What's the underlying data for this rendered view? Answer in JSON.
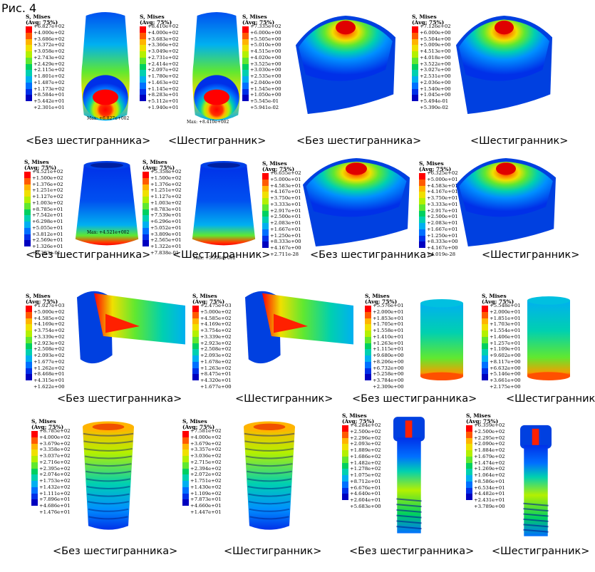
{
  "figure_title": "Рис. 4",
  "legend_header": [
    "S, Mises",
    "(Avg: 75%)"
  ],
  "legend_colors": [
    "#ff0000",
    "#ff5a00",
    "#ffb400",
    "#f0e000",
    "#b4f000",
    "#60e830",
    "#00d060",
    "#00d0b0",
    "#00b0f0",
    "#0070ff",
    "#0030e8",
    "#0000c0"
  ],
  "captions": {
    "without_hex": "<Без шестигранника>",
    "with_hex": "<Шестигранник>"
  },
  "panels": [
    {
      "id": "r1p1",
      "legend": [
        "+6.827e+02",
        "+4.000e+02",
        "+3.686e+02",
        "+3.372e+02",
        "+3.058e+02",
        "+2.743e+02",
        "+2.429e+02",
        "+2.115e+02",
        "+1.801e+02",
        "+1.487e+02",
        "+1.173e+02",
        "+8.584e+01",
        "+5.442e+01",
        "+2.301e+01"
      ],
      "max_label": "Max: +6.827e+002"
    },
    {
      "id": "r1p2",
      "legend": [
        "+8.410e+02",
        "+4.000e+02",
        "+3.683e+02",
        "+3.366e+02",
        "+3.049e+02",
        "+2.731e+02",
        "+2.414e+02",
        "+2.097e+02",
        "+1.780e+02",
        "+1.463e+02",
        "+1.145e+02",
        "+8.283e+01",
        "+5.112e+01",
        "+1.940e+01"
      ],
      "max_label": "Max: +8.410e+002"
    },
    {
      "id": "r1p3",
      "legend": [
        "+7.335e+02",
        "+6.000e+00",
        "+5.505e+00",
        "+5.010e+00",
        "+4.515e+00",
        "+4.020e+00",
        "+3.525e+00",
        "+3.030e+00",
        "+2.535e+00",
        "+2.040e+00",
        "+1.545e+00",
        "+1.050e+00",
        "+5.545e-01",
        "+5.941e-02"
      ]
    },
    {
      "id": "r1p4",
      "legend": [
        "+7.126e+02",
        "+6.000e+00",
        "+5.504e+00",
        "+5.009e+00",
        "+4.513e+00",
        "+4.018e+00",
        "+3.522e+00",
        "+3.027e+00",
        "+2.531e+00",
        "+2.036e+00",
        "+1.540e+00",
        "+1.045e+00",
        "+5.494e-01",
        "+5.390e-02"
      ]
    },
    {
      "id": "r2p1",
      "legend": [
        "+4.521e+02",
        "+1.500e+02",
        "+1.376e+02",
        "+1.251e+02",
        "+1.127e+02",
        "+1.003e+02",
        "+8.785e+01",
        "+7.542e+01",
        "+6.298e+01",
        "+5.055e+01",
        "+3.812e+01",
        "+2.569e+01",
        "+1.326e+01",
        "+8.303e-01"
      ],
      "max_label": "Max: +4.521e+002"
    },
    {
      "id": "r2p2",
      "legend": [
        "+5.358e+02",
        "+1.500e+02",
        "+1.376e+02",
        "+1.251e+02",
        "+1.127e+02",
        "+1.003e+02",
        "+8.783e+01",
        "+7.539e+01",
        "+6.296e+01",
        "+5.052e+01",
        "+3.809e+01",
        "+2.565e+01",
        "+1.322e+01",
        "+7.838e-01"
      ],
      "max_label": "Max: +5.358e+002"
    },
    {
      "id": "r2p3",
      "legend": [
        "+6.655e+02",
        "+5.000e+01",
        "+4.583e+01",
        "+4.167e+01",
        "+3.750e+01",
        "+3.333e+01",
        "+2.917e+01",
        "+2.500e+01",
        "+2.083e+01",
        "+1.667e+01",
        "+1.250e+01",
        "+8.333e+00",
        "+4.167e+00",
        "+2.711e-28"
      ]
    },
    {
      "id": "r2p4",
      "legend": [
        "+6.325e+02",
        "+5.000e+01",
        "+4.583e+01",
        "+4.167e+01",
        "+3.750e+01",
        "+3.333e+01",
        "+2.917e+01",
        "+2.500e+01",
        "+2.083e+01",
        "+1.667e+01",
        "+1.250e+01",
        "+8.333e+00",
        "+4.167e+00",
        "+4.019e-28"
      ]
    },
    {
      "id": "r3p1",
      "legend": [
        "+1.027e+03",
        "+5.000e+02",
        "+4.585e+02",
        "+4.169e+02",
        "+3.754e+02",
        "+3.339e+02",
        "+2.923e+02",
        "+2.508e+02",
        "+2.093e+02",
        "+1.677e+02",
        "+1.262e+02",
        "+8.468e+01",
        "+4.315e+01",
        "+1.622e+00"
      ]
    },
    {
      "id": "r3p2",
      "legend": [
        "+2.475e+03",
        "+5.000e+02",
        "+4.585e+02",
        "+4.169e+02",
        "+3.754e+02",
        "+3.339e+02",
        "+2.923e+02",
        "+2.508e+02",
        "+2.093e+02",
        "+1.678e+02",
        "+1.263e+02",
        "+8.475e+01",
        "+4.320e+01",
        "+1.677e+00"
      ]
    },
    {
      "id": "r3p3",
      "legend": [
        "+5.576e+01",
        "+2.000e+01",
        "+1.853e+01",
        "+1.705e+01",
        "+1.558e+01",
        "+1.410e+01",
        "+1.263e+01",
        "+1.115e+01",
        "+9.680e+00",
        "+8.206e+00",
        "+6.732e+00",
        "+5.258e+00",
        "+3.784e+00",
        "+2.309e+00"
      ]
    },
    {
      "id": "r3p4",
      "legend": [
        "+5.548e+01",
        "+2.000e+01",
        "+1.851e+01",
        "+1.703e+01",
        "+1.554e+01",
        "+1.406e+01",
        "+1.257e+01",
        "+1.109e+01",
        "+9.602e+00",
        "+8.117e+00",
        "+6.632e+00",
        "+5.146e+00",
        "+3.661e+00",
        "+2.175e+00"
      ]
    },
    {
      "id": "r4p1",
      "legend": [
        "+8.785e+02",
        "+4.000e+02",
        "+3.679e+02",
        "+3.358e+02",
        "+3.037e+02",
        "+2.716e+02",
        "+2.395e+02",
        "+2.074e+02",
        "+1.753e+02",
        "+1.432e+02",
        "+1.111e+02",
        "+7.896e+01",
        "+4.686e+01",
        "+1.476e+01"
      ]
    },
    {
      "id": "r4p2",
      "legend": [
        "+7.581e+02",
        "+4.000e+02",
        "+3.679e+02",
        "+3.357e+02",
        "+3.036e+02",
        "+2.715e+02",
        "+2.394e+02",
        "+2.072e+02",
        "+1.751e+02",
        "+1.430e+02",
        "+1.109e+02",
        "+7.873e+01",
        "+4.660e+01",
        "+1.447e+01"
      ]
    },
    {
      "id": "r4p3",
      "legend": [
        "+4.284e+02",
        "+2.500e+02",
        "+2.296e+02",
        "+2.093e+02",
        "+1.889e+02",
        "+1.686e+02",
        "+1.482e+02",
        "+1.278e+02",
        "+1.075e+02",
        "+8.712e+01",
        "+6.676e+01",
        "+4.640e+01",
        "+2.604e+01",
        "+5.683e+00"
      ]
    },
    {
      "id": "r4p4",
      "legend": [
        "+6.359e+02",
        "+2.500e+02",
        "+2.295e+02",
        "+2.090e+02",
        "+1.884e+02",
        "+1.679e+02",
        "+1.474e+02",
        "+1.269e+02",
        "+1.064e+02",
        "+8.586e+01",
        "+6.534e+01",
        "+4.482e+01",
        "+2.431e+01",
        "+3.789e+00"
      ]
    }
  ]
}
